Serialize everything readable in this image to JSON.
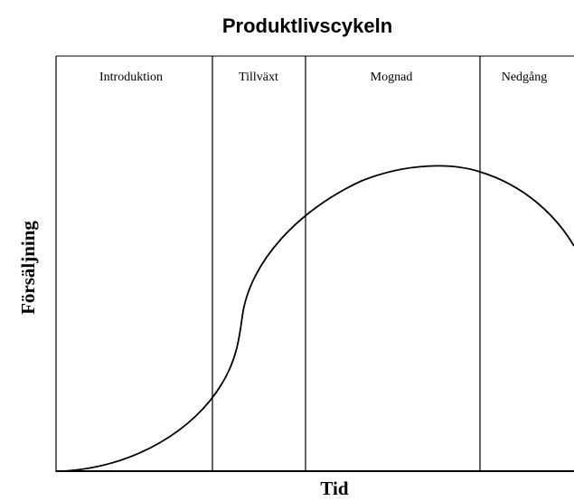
{
  "title": "Produktlivscykeln",
  "stages": [
    "Introduktion",
    "Tillväxt",
    "Mognad",
    "Nedgång"
  ],
  "y_label": "Försäljning",
  "x_label": "Tid"
}
